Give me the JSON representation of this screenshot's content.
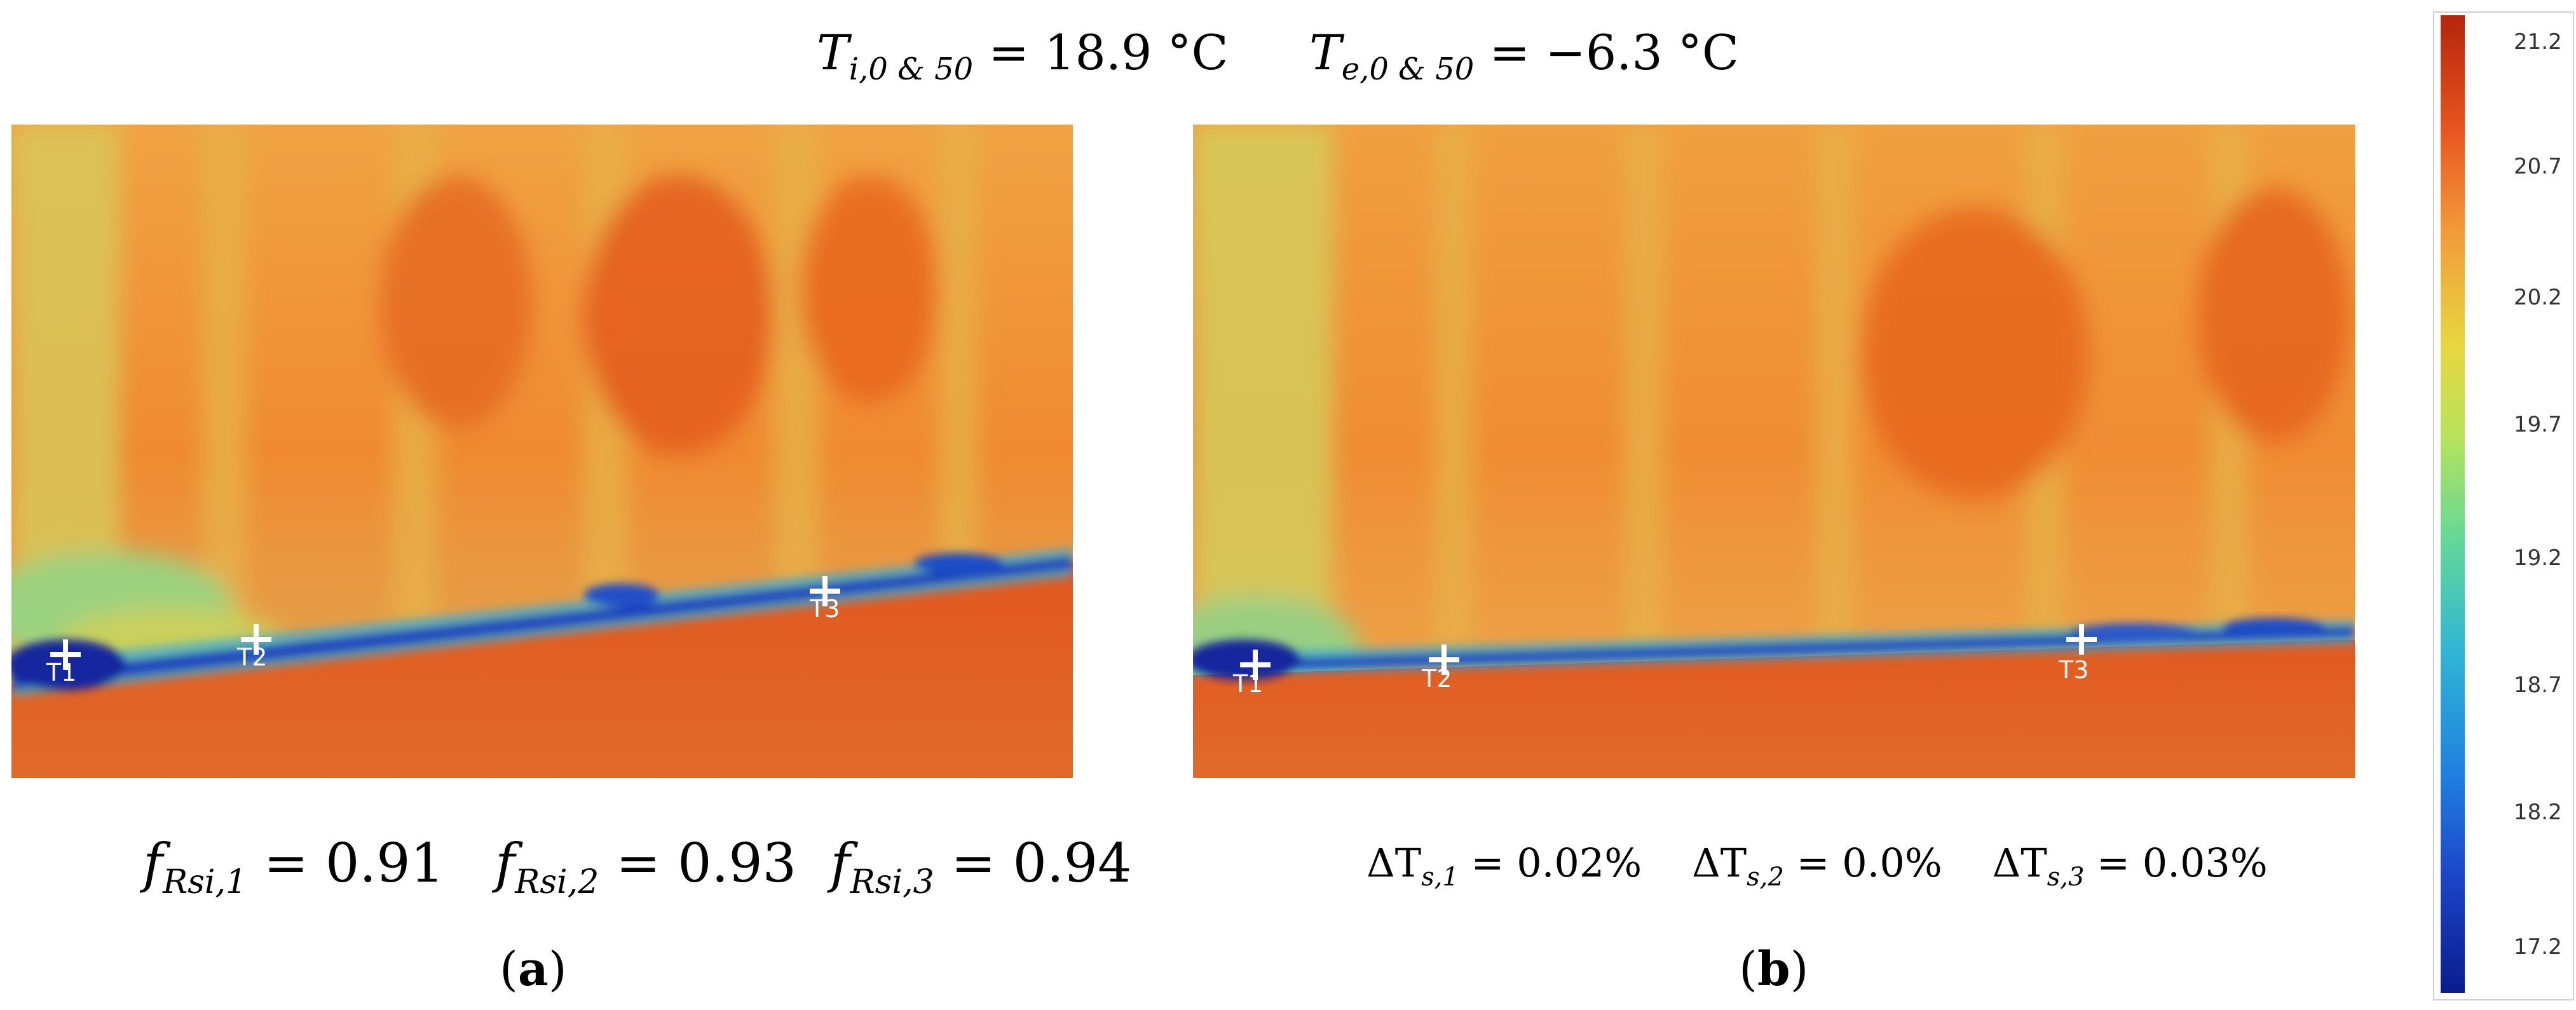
{
  "header": {
    "ti_symbol": "T",
    "ti_sub": "i,0 & 50",
    "ti_value": " = 18.9 °C",
    "te_symbol": "T",
    "te_sub": "e,0 & 50",
    "te_value": " = −6.3 °C"
  },
  "panel_a": {
    "markers": [
      {
        "label": "T1"
      },
      {
        "label": "T2"
      },
      {
        "label": "T3"
      }
    ],
    "metrics": [
      {
        "symbol": "f",
        "sub": "Rsi,1",
        "value": " = 0.91"
      },
      {
        "symbol": "f",
        "sub": "Rsi,2",
        "value": " = 0.93"
      },
      {
        "symbol": "f",
        "sub": "Rsi,3",
        "value": " = 0.94"
      }
    ],
    "caption_open": "(",
    "caption_letter": "a",
    "caption_close": ")"
  },
  "panel_b": {
    "markers": [
      {
        "label": "T1"
      },
      {
        "label": "T2"
      },
      {
        "label": "T3"
      }
    ],
    "metrics": [
      {
        "symbol": "ΔT",
        "sub": "s,1",
        "value": " = 0.02%"
      },
      {
        "symbol": "ΔT",
        "sub": "s,2",
        "value": " = 0.0%"
      },
      {
        "symbol": "ΔT",
        "sub": "s,3",
        "value": " = 0.03%"
      }
    ],
    "caption_open": "(",
    "caption_letter": "b",
    "caption_close": ")"
  },
  "colorbar": {
    "ticks": [
      "21.2",
      "20.7",
      "20.2",
      "19.7",
      "19.2",
      "18.7",
      "18.2",
      "17.2"
    ],
    "colors": {
      "max": "#b4250c",
      "mid_high": "#f29a3a",
      "mid": "#b8e35b",
      "mid_low": "#30b6d4",
      "min": "#0a1c8c"
    }
  }
}
